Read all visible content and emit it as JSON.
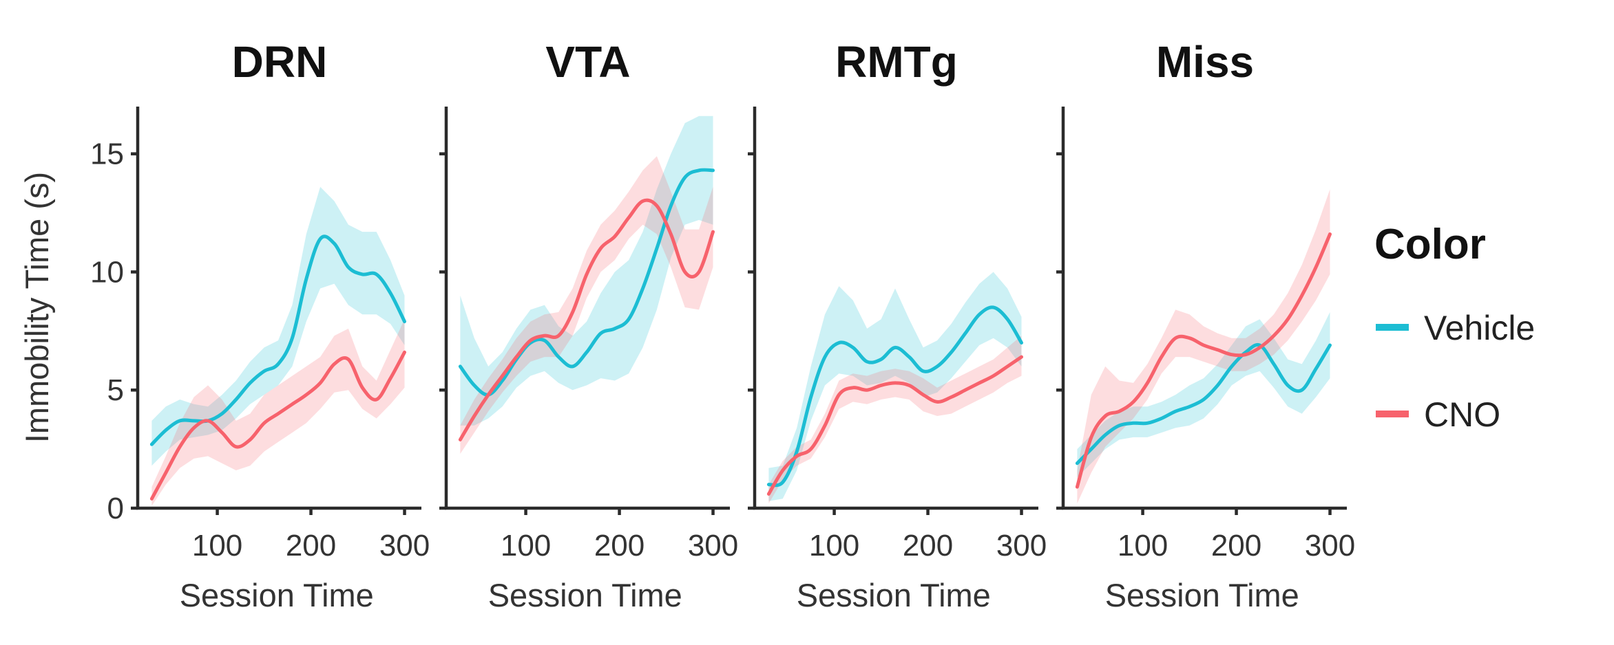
{
  "chart_data": {
    "type": "line",
    "facets": [
      "DRN",
      "VTA",
      "RMTg",
      "Miss"
    ],
    "xlabel": "Session Time",
    "ylabel": "Immobility Time (s)",
    "xticks": [
      100,
      200,
      300
    ],
    "yticks": [
      0,
      5,
      10,
      15
    ],
    "xlim": [
      15,
      318
    ],
    "ylim": [
      0,
      17
    ],
    "legend": {
      "title": "Color",
      "placement": "right",
      "entries": [
        {
          "name": "Vehicle",
          "color": "#1cbdd3"
        },
        {
          "name": "CNO",
          "color": "#f7626c"
        }
      ]
    },
    "panels": [
      {
        "title": "DRN",
        "series": [
          {
            "name": "Vehicle",
            "color": "#1cbdd3",
            "x": [
              30,
              45,
              60,
              75,
              90,
              105,
              120,
              135,
              150,
              165,
              180,
              195,
              210,
              225,
              240,
              255,
              270,
              285,
              300
            ],
            "y": [
              2.7,
              3.3,
              3.7,
              3.7,
              3.7,
              4.0,
              4.6,
              5.3,
              5.8,
              6.1,
              7.2,
              9.7,
              11.4,
              11.2,
              10.2,
              9.9,
              9.9,
              9.1,
              7.9
            ],
            "lower": [
              1.8,
              2.4,
              2.9,
              3.0,
              3.1,
              3.3,
              3.8,
              4.4,
              4.8,
              5.2,
              6.0,
              7.9,
              9.3,
              9.5,
              8.6,
              8.2,
              8.2,
              7.8,
              6.9
            ],
            "upper": [
              3.7,
              4.3,
              4.6,
              4.4,
              4.3,
              4.8,
              5.4,
              6.2,
              6.8,
              7.1,
              8.6,
              11.6,
              13.6,
              13.0,
              12.0,
              11.7,
              11.7,
              10.5,
              9.0
            ]
          },
          {
            "name": "CNO",
            "color": "#f7626c",
            "x": [
              30,
              45,
              60,
              75,
              90,
              105,
              120,
              135,
              150,
              165,
              180,
              195,
              210,
              225,
              240,
              255,
              270,
              285,
              300
            ],
            "y": [
              0.4,
              1.5,
              2.6,
              3.4,
              3.7,
              3.2,
              2.6,
              2.9,
              3.6,
              4.0,
              4.4,
              4.8,
              5.3,
              6.1,
              6.3,
              5.1,
              4.6,
              5.5,
              6.6
            ],
            "lower": [
              0.1,
              1.0,
              1.7,
              2.1,
              2.2,
              1.9,
              1.6,
              1.8,
              2.4,
              2.8,
              3.2,
              3.6,
              4.2,
              4.9,
              5.0,
              4.2,
              3.8,
              4.4,
              5.1
            ],
            "upper": [
              0.9,
              2.2,
              3.6,
              4.7,
              5.2,
              4.6,
              3.7,
              4.0,
              4.8,
              5.2,
              5.6,
              6.0,
              6.4,
              7.3,
              7.6,
              6.0,
              5.4,
              6.7,
              8.0
            ]
          }
        ]
      },
      {
        "title": "VTA",
        "series": [
          {
            "name": "Vehicle",
            "color": "#1cbdd3",
            "x": [
              30,
              45,
              60,
              75,
              90,
              105,
              120,
              135,
              150,
              165,
              180,
              195,
              210,
              225,
              240,
              255,
              270,
              285,
              300
            ],
            "y": [
              6.0,
              5.2,
              4.8,
              5.4,
              6.3,
              7.0,
              7.1,
              6.4,
              6.0,
              6.6,
              7.4,
              7.6,
              8.0,
              9.3,
              11.0,
              12.8,
              14.0,
              14.3,
              14.3
            ],
            "lower": [
              3.5,
              3.5,
              3.8,
              4.3,
              5.1,
              5.6,
              5.8,
              5.3,
              5.0,
              5.2,
              5.5,
              5.4,
              5.7,
              6.8,
              8.4,
              10.6,
              12.0,
              12.2,
              12.0
            ],
            "upper": [
              9.0,
              7.2,
              6.0,
              6.6,
              7.6,
              8.4,
              8.6,
              7.7,
              7.3,
              7.9,
              9.1,
              10.0,
              10.5,
              11.7,
              13.5,
              15.0,
              16.3,
              16.6,
              16.6
            ]
          },
          {
            "name": "CNO",
            "color": "#f7626c",
            "x": [
              30,
              45,
              60,
              75,
              90,
              105,
              120,
              135,
              150,
              165,
              180,
              195,
              210,
              225,
              240,
              255,
              270,
              285,
              300
            ],
            "y": [
              2.9,
              3.9,
              4.8,
              5.6,
              6.4,
              7.1,
              7.3,
              7.3,
              8.3,
              9.9,
              11.0,
              11.5,
              12.3,
              13.0,
              12.8,
              11.6,
              10.0,
              10.0,
              11.7
            ],
            "lower": [
              2.3,
              3.2,
              4.1,
              4.9,
              5.6,
              6.2,
              6.4,
              6.4,
              7.3,
              8.9,
              10.0,
              10.5,
              11.4,
              12.0,
              11.6,
              10.2,
              8.5,
              8.4,
              10.2
            ],
            "upper": [
              3.5,
              4.6,
              5.5,
              6.3,
              7.2,
              7.9,
              8.2,
              8.3,
              9.3,
              10.9,
              12.0,
              12.6,
              13.4,
              14.3,
              14.9,
              13.4,
              11.8,
              11.8,
              13.6
            ]
          }
        ]
      },
      {
        "title": "RMTg",
        "series": [
          {
            "name": "Vehicle",
            "color": "#1cbdd3",
            "x": [
              30,
              45,
              60,
              75,
              90,
              105,
              120,
              135,
              150,
              165,
              180,
              195,
              210,
              225,
              240,
              255,
              270,
              285,
              300
            ],
            "y": [
              1.0,
              1.1,
              2.4,
              4.7,
              6.4,
              7.0,
              6.8,
              6.2,
              6.3,
              6.8,
              6.4,
              5.8,
              6.0,
              6.6,
              7.4,
              8.2,
              8.5,
              8.0,
              7.0
            ],
            "lower": [
              0.3,
              0.4,
              1.6,
              3.7,
              5.2,
              5.7,
              5.6,
              5.2,
              5.3,
              5.6,
              5.3,
              4.7,
              4.9,
              5.5,
              6.2,
              6.9,
              7.2,
              6.8,
              6.0
            ],
            "upper": [
              1.7,
              1.8,
              3.4,
              6.0,
              8.2,
              9.4,
              8.8,
              7.6,
              8.0,
              9.3,
              8.0,
              6.8,
              7.1,
              7.8,
              8.7,
              9.5,
              10.0,
              9.3,
              8.1
            ]
          },
          {
            "name": "CNO",
            "color": "#f7626c",
            "x": [
              30,
              45,
              60,
              75,
              90,
              105,
              120,
              135,
              150,
              165,
              180,
              195,
              210,
              225,
              240,
              255,
              270,
              285,
              300
            ],
            "y": [
              0.6,
              1.6,
              2.2,
              2.5,
              3.5,
              4.8,
              5.1,
              5.0,
              5.2,
              5.3,
              5.2,
              4.8,
              4.5,
              4.7,
              5.0,
              5.3,
              5.6,
              6.0,
              6.4
            ],
            "lower": [
              0.2,
              1.2,
              1.8,
              2.1,
              3.0,
              4.2,
              4.5,
              4.4,
              4.6,
              4.7,
              4.6,
              4.1,
              3.9,
              4.0,
              4.3,
              4.6,
              4.9,
              5.3,
              5.6
            ],
            "upper": [
              1.0,
              2.0,
              2.6,
              2.9,
              4.0,
              5.4,
              5.7,
              5.6,
              5.8,
              5.9,
              5.8,
              5.5,
              5.1,
              5.4,
              5.7,
              6.0,
              6.3,
              6.8,
              7.3
            ]
          }
        ]
      },
      {
        "title": "Miss",
        "series": [
          {
            "name": "Vehicle",
            "color": "#1cbdd3",
            "x": [
              30,
              45,
              60,
              75,
              90,
              105,
              120,
              135,
              150,
              165,
              180,
              195,
              210,
              225,
              240,
              255,
              270,
              285,
              300
            ],
            "y": [
              1.9,
              2.5,
              3.1,
              3.5,
              3.6,
              3.6,
              3.8,
              4.1,
              4.3,
              4.6,
              5.2,
              6.0,
              6.6,
              6.9,
              6.1,
              5.2,
              5.0,
              5.9,
              6.9
            ],
            "lower": [
              1.3,
              1.9,
              2.5,
              2.9,
              3.0,
              3.0,
              3.2,
              3.4,
              3.5,
              3.8,
              4.4,
              5.2,
              5.6,
              5.8,
              5.1,
              4.3,
              4.0,
              4.7,
              5.5
            ],
            "upper": [
              2.5,
              3.1,
              3.7,
              4.1,
              4.3,
              4.3,
              4.5,
              4.8,
              5.2,
              5.5,
              6.1,
              6.9,
              7.7,
              8.0,
              7.2,
              6.3,
              6.1,
              7.1,
              8.3
            ]
          },
          {
            "name": "CNO",
            "color": "#f7626c",
            "x": [
              30,
              45,
              60,
              75,
              90,
              105,
              120,
              135,
              150,
              165,
              180,
              195,
              210,
              225,
              240,
              255,
              270,
              285,
              300
            ],
            "y": [
              0.9,
              3.0,
              3.9,
              4.1,
              4.5,
              5.3,
              6.4,
              7.2,
              7.2,
              6.9,
              6.7,
              6.5,
              6.5,
              6.8,
              7.3,
              8.0,
              9.0,
              10.2,
              11.6
            ],
            "lower": [
              0.2,
              1.5,
              2.6,
              3.2,
              3.8,
              4.6,
              5.7,
              6.4,
              6.4,
              6.2,
              6.0,
              5.8,
              5.8,
              6.1,
              6.5,
              7.1,
              7.9,
              8.8,
              9.9
            ],
            "upper": [
              1.6,
              4.8,
              6.0,
              5.4,
              5.3,
              6.1,
              7.2,
              8.4,
              8.2,
              7.7,
              7.4,
              7.2,
              7.2,
              7.6,
              8.2,
              9.1,
              10.3,
              11.8,
              13.5
            ]
          }
        ]
      }
    ]
  }
}
